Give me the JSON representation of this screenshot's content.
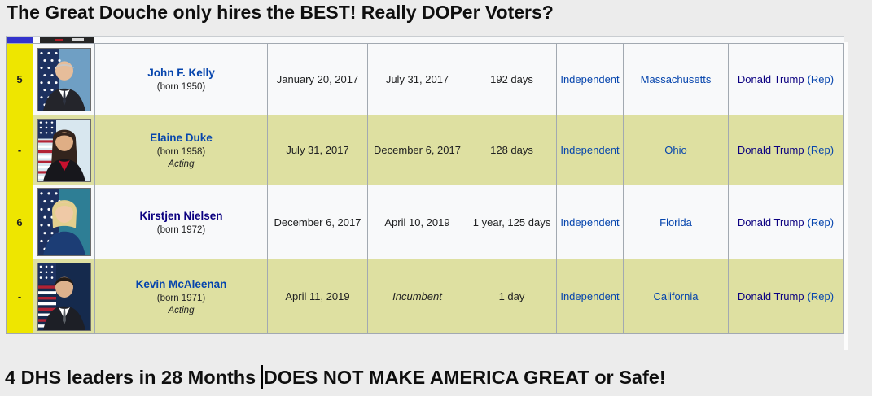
{
  "title": {
    "text": "The Great Douche only hires the BEST! Really DOPer Voters?"
  },
  "caption": {
    "before_cursor": "4 DHS leaders in 28 Months ",
    "after_cursor": "DOES NOT MAKE AMERICA GREAT or Safe!"
  },
  "colors": {
    "page_bg": "#ececec",
    "row_light": "#f8f9fa",
    "row_acting": "#dee0a1",
    "number_column": "#eee600",
    "border": "#a2a9b1",
    "partial_row_blue_bar": "#3333cc",
    "link": "#0645ad",
    "link_visited": "#0b0080",
    "flag_navy": "#1d3160",
    "flag_red": "#b22234"
  },
  "table": {
    "rows": [
      {
        "number": "5",
        "name": "John F. Kelly",
        "name_visited": false,
        "born": "(born 1950)",
        "acting": "",
        "term_start": "January 20, 2017",
        "term_end": "July 31, 2017",
        "term_end_italic": false,
        "duration": "192 days",
        "party": "Independent",
        "state": "Massachusetts",
        "president": "Donald Trump",
        "president_party": "(Rep)",
        "highlight": false,
        "photo": {
          "alt": "John F. Kelly portrait",
          "flag": "stars",
          "bg": "#6f9fc4",
          "hair": "#c9c9c9",
          "hair_style": "bald",
          "skin": "#e6bd9a",
          "suit": "#24252b",
          "shirt": "#ffffff",
          "tie": "#2e3340"
        }
      },
      {
        "number": "-",
        "name": "Elaine Duke",
        "name_visited": false,
        "born": "(born 1958)",
        "acting": "Acting",
        "term_start": "July 31, 2017",
        "term_end": "December 6, 2017",
        "term_end_italic": false,
        "duration": "128 days",
        "party": "Independent",
        "state": "Ohio",
        "president": "Donald Trump",
        "president_party": "(Rep)",
        "highlight": true,
        "photo": {
          "alt": "Elaine Duke portrait",
          "flag": "stripes",
          "bg": "#d8e7ef",
          "hair": "#33241d",
          "hair_style": "long",
          "skin": "#dfae85",
          "suit": "#17171c",
          "shirt": "#c8102e",
          "tie": ""
        }
      },
      {
        "number": "6",
        "name": "Kirstjen Nielsen",
        "name_visited": true,
        "born": "(born 1972)",
        "acting": "",
        "term_start": "December 6, 2017",
        "term_end": "April 10, 2019",
        "term_end_italic": false,
        "duration": "1 year, 125 days",
        "party": "Independent",
        "state": "Florida",
        "president": "Donald Trump",
        "president_party": "(Rep)",
        "highlight": false,
        "photo": {
          "alt": "Kirstjen Nielsen portrait",
          "flag": "stars",
          "bg": "#2e7e95",
          "hair": "#e3cf8e",
          "hair_style": "bob",
          "skin": "#efc9a6",
          "suit": "#1c3d75",
          "shirt": "",
          "tie": ""
        }
      },
      {
        "number": "-",
        "name": "Kevin McAleenan",
        "name_visited": false,
        "born": "(born 1971)",
        "acting": "Acting",
        "term_start": "April 11, 2019",
        "term_end": "Incumbent",
        "term_end_italic": true,
        "duration": "1 day",
        "party": "Independent",
        "state": "California",
        "president": "Donald Trump",
        "president_party": "(Rep)",
        "highlight": true,
        "photo": {
          "alt": "Kevin McAleenan portrait",
          "flag": "stripes",
          "bg": "#152a4d",
          "hair": "#241c15",
          "hair_style": "short",
          "skin": "#ddb28c",
          "suit": "#1d1f26",
          "shirt": "#ffffff",
          "tie": "#5b6066"
        }
      }
    ]
  }
}
